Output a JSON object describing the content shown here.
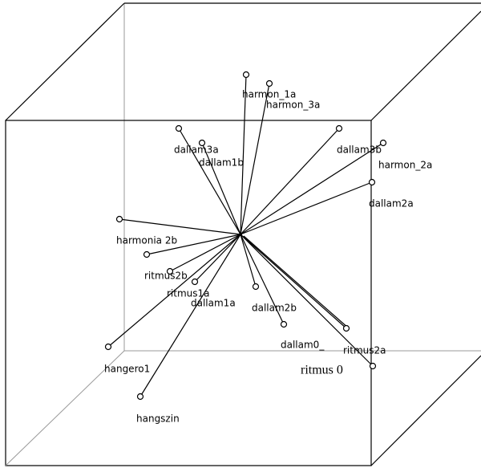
{
  "nodes": [
    {
      "label": "harmon_1a"
    },
    {
      "label": "harmon_3a"
    },
    {
      "label": "dallam3a"
    },
    {
      "label": "dallam1b"
    },
    {
      "label": "dallam3b"
    },
    {
      "label": "harmon_2a"
    },
    {
      "label": "dallam2a"
    },
    {
      "label": "harmonia 2b"
    },
    {
      "label": "ritmus2b"
    },
    {
      "label": "ritmus1a"
    },
    {
      "label": "dallam1a"
    },
    {
      "label": "dallam2b"
    },
    {
      "label": "dallam0_"
    },
    {
      "label": "ritmus2a"
    },
    {
      "label": "ritmus 0"
    },
    {
      "label": "hangero1"
    },
    {
      "label": "hangszin"
    }
  ]
}
